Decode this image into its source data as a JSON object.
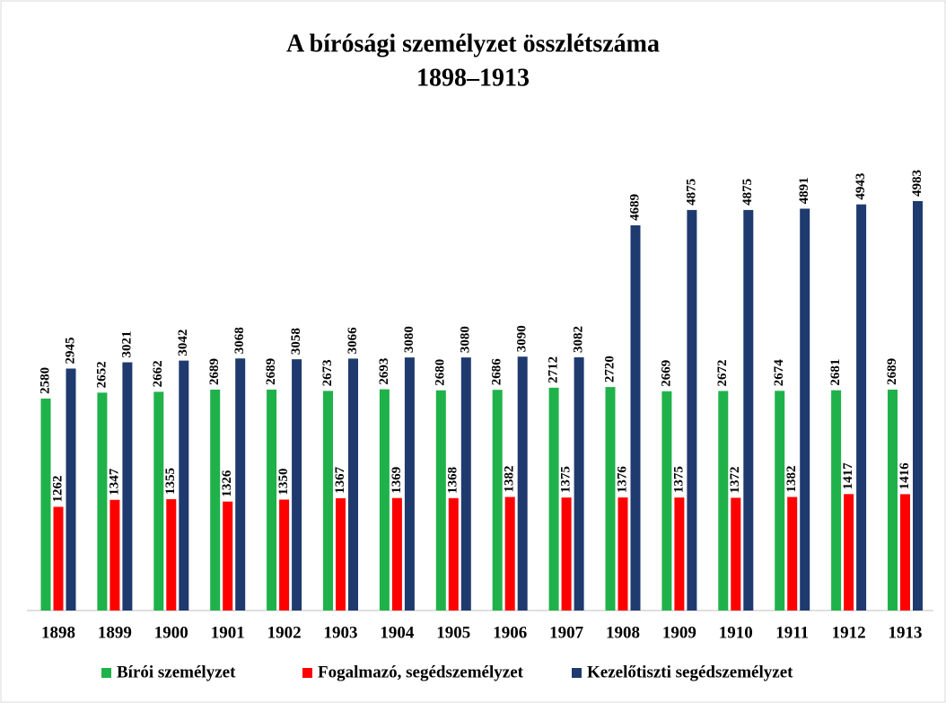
{
  "chart_data": {
    "type": "bar",
    "title": "A bírósági személyzet összlétszáma",
    "subtitle": "1898–1913",
    "categories": [
      "1898",
      "1899",
      "1900",
      "1901",
      "1902",
      "1903",
      "1904",
      "1905",
      "1906",
      "1907",
      "1908",
      "1909",
      "1910",
      "1911",
      "1912",
      "1913"
    ],
    "series": [
      {
        "name": "Bírói személyzet",
        "color": "#1fb24a",
        "values": [
          2580,
          2652,
          2662,
          2689,
          2689,
          2673,
          2693,
          2680,
          2686,
          2712,
          2720,
          2669,
          2672,
          2674,
          2681,
          2689
        ]
      },
      {
        "name": "Fogalmazó, segédszemélyzet",
        "color": "#ff0000",
        "values": [
          1262,
          1347,
          1355,
          1326,
          1350,
          1367,
          1369,
          1368,
          1382,
          1375,
          1376,
          1375,
          1372,
          1382,
          1417,
          1416
        ]
      },
      {
        "name": "Kezelőtiszti segédszemélyzet",
        "color": "#1f3a6e",
        "values": [
          2945,
          3021,
          3042,
          3068,
          3058,
          3066,
          3080,
          3080,
          3090,
          3082,
          4689,
          4875,
          4875,
          4891,
          4943,
          4983
        ]
      }
    ]
  }
}
